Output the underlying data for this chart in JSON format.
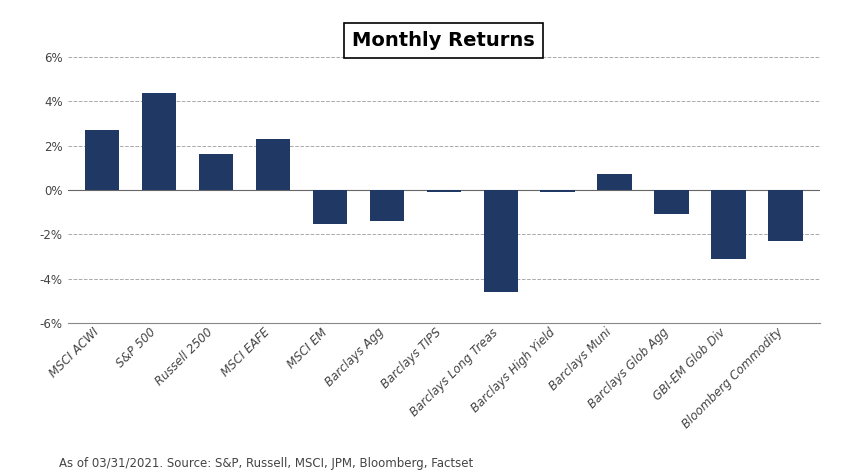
{
  "title": "Monthly Returns",
  "categories": [
    "MSCI ACWI",
    "S&P 500",
    "Russell 2500",
    "MSCI EAFE",
    "MSCI EM",
    "Barclays Agg",
    "Barclays TIPS",
    "Barclays Long Treas",
    "Barclays High Yield",
    "Barclays Muni",
    "Barclays Glob Agg",
    "GBI-EM Glob Div",
    "Bloomberg Commodity"
  ],
  "values": [
    2.72,
    4.38,
    1.63,
    2.3,
    -1.52,
    -1.4,
    -0.1,
    -4.62,
    -0.1,
    0.72,
    -1.1,
    -3.1,
    -2.3
  ],
  "bar_color": "#1F3864",
  "background_color": "#ffffff",
  "ylim": [
    -6,
    6
  ],
  "yticks": [
    -6,
    -4,
    -2,
    0,
    2,
    4,
    6
  ],
  "footnote": "As of 03/31/2021. Source: S&P, Russell, MSCI, JPM, Bloomberg, Factset",
  "title_fontsize": 14,
  "tick_fontsize": 8.5,
  "footnote_fontsize": 8.5,
  "bar_width": 0.6
}
